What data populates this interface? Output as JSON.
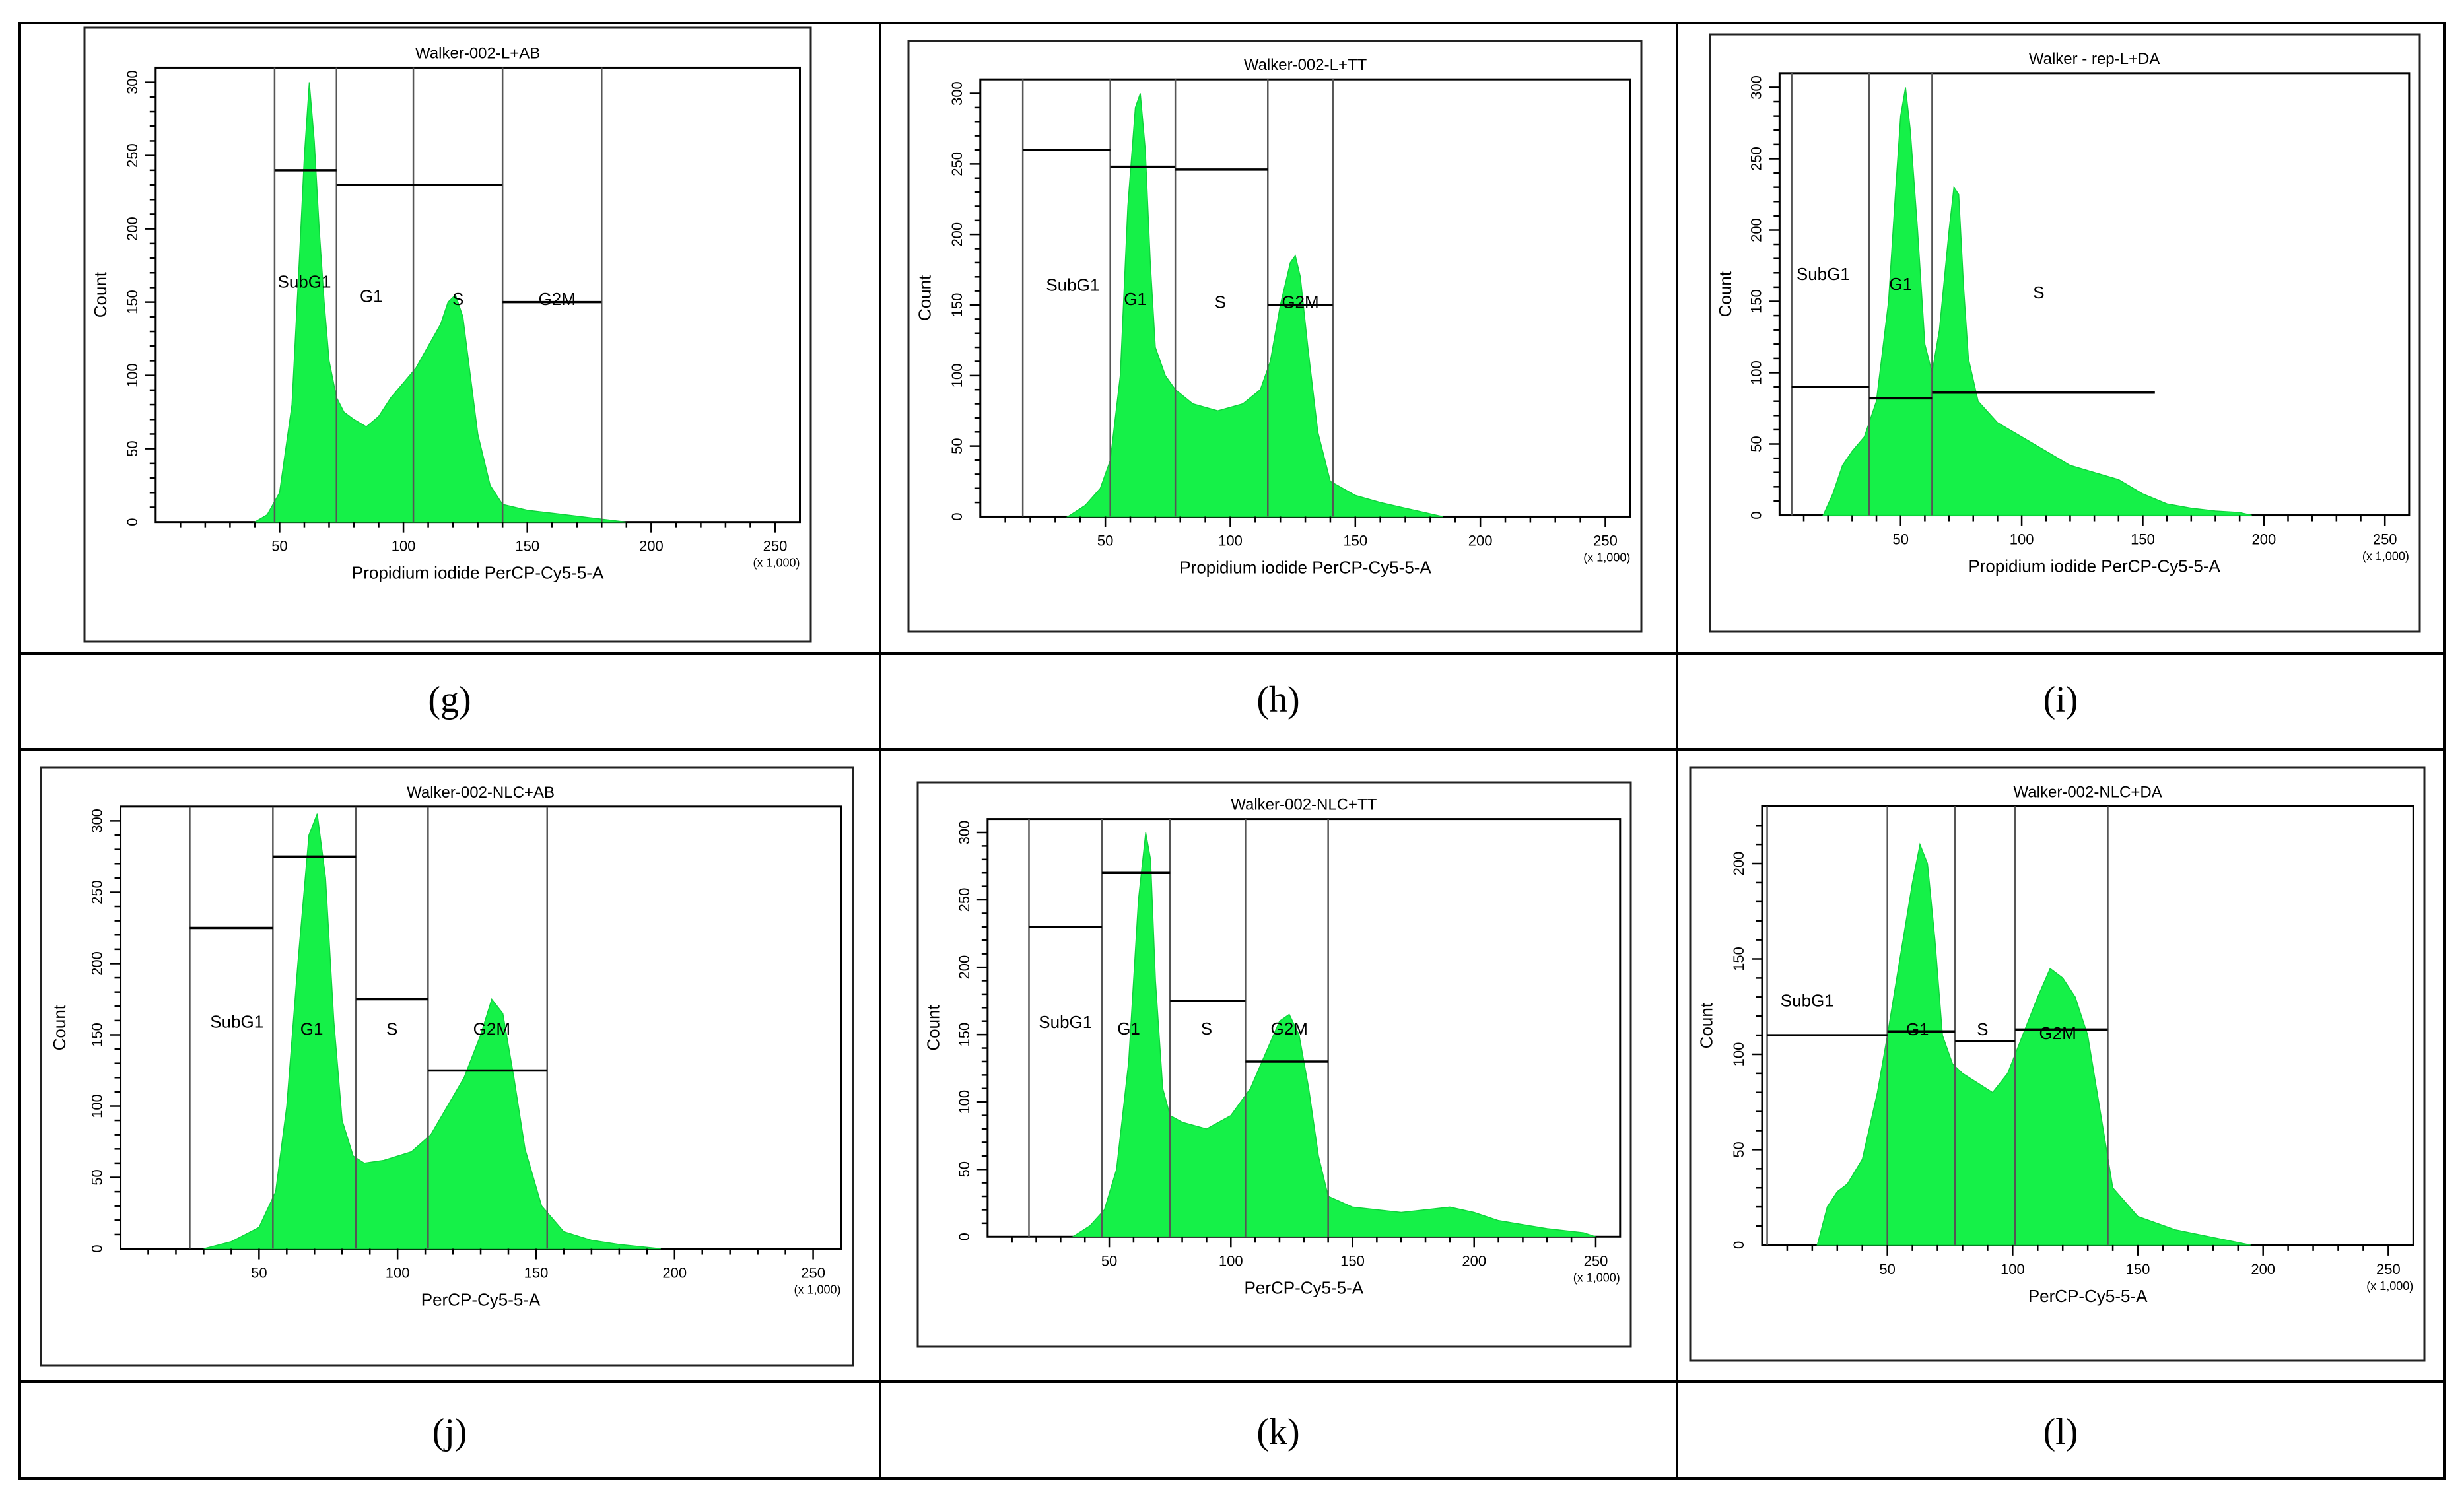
{
  "chart_data": [
    {
      "type": "histogram",
      "caption": "(g)",
      "title": "Walker-002-L+AB",
      "xlabel": "Propidium iodide PerCP-Cy5-5-A",
      "ylabel": "Count",
      "x_scale_note": "(x 1,000)",
      "xlim": [
        0,
        260
      ],
      "ylim": [
        0,
        310
      ],
      "x_ticks": [
        50,
        100,
        150,
        200,
        250
      ],
      "y_ticks": [
        0,
        50,
        100,
        150,
        200,
        250,
        300
      ],
      "dividers": [
        48,
        73,
        104,
        140,
        180
      ],
      "gates": [
        {
          "label": "SubG1",
          "x1": 48,
          "x2": 73,
          "y": 240
        },
        {
          "label": "G1",
          "x1": 73,
          "x2": 140,
          "y": 230
        },
        {
          "label": "G2M",
          "x1": 140,
          "x2": 180,
          "y": 150
        }
      ],
      "gate_labels": [
        {
          "label": "SubG1",
          "x": 60,
          "y": 160
        },
        {
          "label": "G1",
          "x": 87,
          "y": 150
        },
        {
          "label": "S",
          "x": 122,
          "y": 148
        },
        {
          "label": "G2M",
          "x": 162,
          "y": 148
        }
      ],
      "histogram": {
        "x": [
          40,
          45,
          50,
          55,
          58,
          60,
          62,
          64,
          66,
          68,
          70,
          73,
          76,
          80,
          85,
          90,
          95,
          100,
          105,
          110,
          115,
          118,
          121,
          124,
          127,
          130,
          135,
          140,
          150,
          160,
          170,
          180,
          190
        ],
        "y": [
          0,
          5,
          20,
          80,
          180,
          250,
          300,
          260,
          200,
          150,
          110,
          85,
          75,
          70,
          65,
          72,
          85,
          95,
          105,
          120,
          135,
          150,
          155,
          140,
          100,
          60,
          25,
          12,
          8,
          6,
          4,
          2,
          0
        ]
      }
    },
    {
      "type": "histogram",
      "caption": "(h)",
      "title": "Walker-002-L+TT",
      "xlabel": "Propidium iodide PerCP-Cy5-5-A",
      "ylabel": "Count",
      "x_scale_note": "(x 1,000)",
      "xlim": [
        0,
        260
      ],
      "ylim": [
        0,
        310
      ],
      "x_ticks": [
        50,
        100,
        150,
        200,
        250
      ],
      "y_ticks": [
        0,
        50,
        100,
        150,
        200,
        250,
        300
      ],
      "dividers": [
        17,
        52,
        78,
        115,
        141
      ],
      "gates": [
        {
          "label": "SubG1",
          "x1": 17,
          "x2": 52,
          "y": 260
        },
        {
          "label": "G1",
          "x1": 52,
          "x2": 78,
          "y": 248
        },
        {
          "label": "S",
          "x1": 78,
          "x2": 115,
          "y": 246
        },
        {
          "label": "G2M",
          "x1": 115,
          "x2": 141,
          "y": 150
        }
      ],
      "gate_labels": [
        {
          "label": "SubG1",
          "x": 37,
          "y": 160
        },
        {
          "label": "G1",
          "x": 62,
          "y": 150
        },
        {
          "label": "S",
          "x": 96,
          "y": 148
        },
        {
          "label": "G2M",
          "x": 128,
          "y": 148
        }
      ],
      "histogram": {
        "x": [
          35,
          42,
          48,
          52,
          56,
          59,
          62,
          64,
          66,
          68,
          70,
          74,
          78,
          85,
          95,
          105,
          112,
          116,
          120,
          124,
          126,
          128,
          131,
          135,
          140,
          150,
          160,
          170,
          180,
          185
        ],
        "y": [
          0,
          8,
          20,
          40,
          100,
          220,
          290,
          300,
          260,
          180,
          120,
          100,
          90,
          80,
          75,
          80,
          90,
          110,
          150,
          180,
          185,
          170,
          120,
          60,
          25,
          15,
          10,
          6,
          2,
          0
        ]
      }
    },
    {
      "type": "histogram",
      "caption": "(i)",
      "title": "Walker - rep-L+DA",
      "xlabel": "Propidium iodide PerCP-Cy5-5-A",
      "ylabel": "Count",
      "x_scale_note": "(x 1,000)",
      "xlim": [
        0,
        260
      ],
      "ylim": [
        0,
        310
      ],
      "x_ticks": [
        50,
        100,
        150,
        200,
        250
      ],
      "y_ticks": [
        0,
        50,
        100,
        150,
        200,
        250,
        300
      ],
      "dividers": [
        5,
        37,
        63
      ],
      "gates": [
        {
          "label": "SubG1",
          "x1": 5,
          "x2": 37,
          "y": 90
        },
        {
          "label": "G1",
          "x1": 37,
          "x2": 63,
          "y": 82
        },
        {
          "label": "S",
          "x1": 63,
          "x2": 155,
          "y": 86
        }
      ],
      "gate_labels": [
        {
          "label": "SubG1",
          "x": 18,
          "y": 165
        },
        {
          "label": "G1",
          "x": 50,
          "y": 158
        },
        {
          "label": "S",
          "x": 107,
          "y": 152
        }
      ],
      "histogram": {
        "x": [
          18,
          22,
          26,
          30,
          35,
          40,
          45,
          48,
          50,
          52,
          54,
          57,
          60,
          63,
          66,
          70,
          72,
          74,
          76,
          78,
          82,
          90,
          100,
          110,
          120,
          130,
          140,
          150,
          160,
          170,
          180,
          190,
          195
        ],
        "y": [
          0,
          15,
          35,
          45,
          55,
          80,
          150,
          230,
          280,
          300,
          270,
          200,
          120,
          100,
          130,
          200,
          230,
          225,
          160,
          110,
          80,
          65,
          55,
          45,
          35,
          30,
          25,
          15,
          8,
          5,
          3,
          2,
          0
        ]
      }
    },
    {
      "type": "histogram",
      "caption": "(j)",
      "title": "Walker-002-NLC+AB",
      "xlabel": "PerCP-Cy5-5-A",
      "ylabel": "Count",
      "x_scale_note": "(x 1,000)",
      "xlim": [
        0,
        260
      ],
      "ylim": [
        0,
        310
      ],
      "x_ticks": [
        50,
        100,
        150,
        200,
        250
      ],
      "y_ticks": [
        0,
        50,
        100,
        150,
        200,
        250,
        300
      ],
      "dividers": [
        25,
        55,
        85,
        111,
        154
      ],
      "gates": [
        {
          "label": "SubG1",
          "x1": 25,
          "x2": 55,
          "y": 225
        },
        {
          "label": "G1",
          "x1": 55,
          "x2": 85,
          "y": 275
        },
        {
          "label": "S",
          "x1": 85,
          "x2": 111,
          "y": 175
        },
        {
          "label": "G2M",
          "x1": 111,
          "x2": 154,
          "y": 125
        }
      ],
      "gate_labels": [
        {
          "label": "SubG1",
          "x": 42,
          "y": 155
        },
        {
          "label": "G1",
          "x": 69,
          "y": 150
        },
        {
          "label": "S",
          "x": 98,
          "y": 150
        },
        {
          "label": "G2M",
          "x": 134,
          "y": 150
        }
      ],
      "histogram": {
        "x": [
          30,
          40,
          50,
          56,
          60,
          64,
          68,
          71,
          74,
          77,
          80,
          84,
          88,
          95,
          105,
          112,
          118,
          124,
          130,
          134,
          138,
          142,
          146,
          152,
          160,
          170,
          180,
          195
        ],
        "y": [
          0,
          5,
          15,
          40,
          100,
          200,
          290,
          305,
          260,
          160,
          90,
          65,
          60,
          62,
          68,
          80,
          100,
          120,
          150,
          175,
          165,
          120,
          70,
          30,
          12,
          6,
          3,
          0
        ]
      }
    },
    {
      "type": "histogram",
      "caption": "(k)",
      "title": "Walker-002-NLC+TT",
      "xlabel": "PerCP-Cy5-5-A",
      "ylabel": "Count",
      "x_scale_note": "(x 1,000)",
      "xlim": [
        0,
        260
      ],
      "ylim": [
        0,
        310
      ],
      "x_ticks": [
        50,
        100,
        150,
        200,
        250
      ],
      "y_ticks": [
        0,
        50,
        100,
        150,
        200,
        250,
        300
      ],
      "dividers": [
        17,
        47,
        75,
        106,
        140
      ],
      "gates": [
        {
          "label": "SubG1",
          "x1": 17,
          "x2": 47,
          "y": 230
        },
        {
          "label": "G1",
          "x1": 47,
          "x2": 75,
          "y": 270
        },
        {
          "label": "S",
          "x1": 75,
          "x2": 106,
          "y": 175
        },
        {
          "label": "G2M",
          "x1": 106,
          "x2": 140,
          "y": 130
        }
      ],
      "gate_labels": [
        {
          "label": "SubG1",
          "x": 32,
          "y": 155
        },
        {
          "label": "G1",
          "x": 58,
          "y": 150
        },
        {
          "label": "S",
          "x": 90,
          "y": 150
        },
        {
          "label": "G2M",
          "x": 124,
          "y": 150
        }
      ],
      "histogram": {
        "x": [
          35,
          42,
          48,
          53,
          58,
          62,
          65,
          67,
          69,
          72,
          75,
          80,
          90,
          100,
          108,
          114,
          120,
          124,
          128,
          132,
          136,
          140,
          150,
          170,
          190,
          200,
          210,
          230,
          245,
          250
        ],
        "y": [
          0,
          8,
          20,
          50,
          130,
          250,
          300,
          280,
          190,
          110,
          90,
          85,
          80,
          90,
          110,
          135,
          160,
          165,
          150,
          110,
          60,
          30,
          22,
          18,
          22,
          18,
          12,
          6,
          3,
          0
        ]
      }
    },
    {
      "type": "histogram",
      "caption": "(l)",
      "title": "Walker-002-NLC+DA",
      "xlabel": "PerCP-Cy5-5-A",
      "ylabel": "Count",
      "x_scale_note": "(x 1,000)",
      "xlim": [
        0,
        260
      ],
      "ylim": [
        0,
        230
      ],
      "x_ticks": [
        50,
        100,
        150,
        200,
        250
      ],
      "y_ticks": [
        0,
        50,
        100,
        150,
        200
      ],
      "dividers": [
        2,
        50,
        77,
        101,
        138
      ],
      "gates": [
        {
          "label": "SubG1",
          "x1": 2,
          "x2": 50,
          "y": 110
        },
        {
          "label": "G1",
          "x1": 50,
          "x2": 77,
          "y": 112
        },
        {
          "label": "S",
          "x1": 77,
          "x2": 101,
          "y": 107
        },
        {
          "label": "G2M",
          "x1": 101,
          "x2": 138,
          "y": 113
        }
      ],
      "gate_labels": [
        {
          "label": "SubG1",
          "x": 18,
          "y": 125
        },
        {
          "label": "G1",
          "x": 62,
          "y": 110
        },
        {
          "label": "S",
          "x": 88,
          "y": 110
        },
        {
          "label": "G2M",
          "x": 118,
          "y": 108
        }
      ],
      "histogram": {
        "x": [
          22,
          26,
          30,
          34,
          40,
          46,
          50,
          55,
          60,
          63,
          66,
          69,
          72,
          76,
          80,
          86,
          92,
          98,
          104,
          110,
          115,
          120,
          125,
          130,
          135,
          140,
          150,
          165,
          180,
          195
        ],
        "y": [
          0,
          20,
          28,
          32,
          45,
          80,
          110,
          150,
          190,
          210,
          200,
          160,
          110,
          95,
          90,
          85,
          80,
          90,
          110,
          130,
          145,
          140,
          130,
          110,
          70,
          30,
          15,
          8,
          4,
          0
        ]
      }
    }
  ]
}
